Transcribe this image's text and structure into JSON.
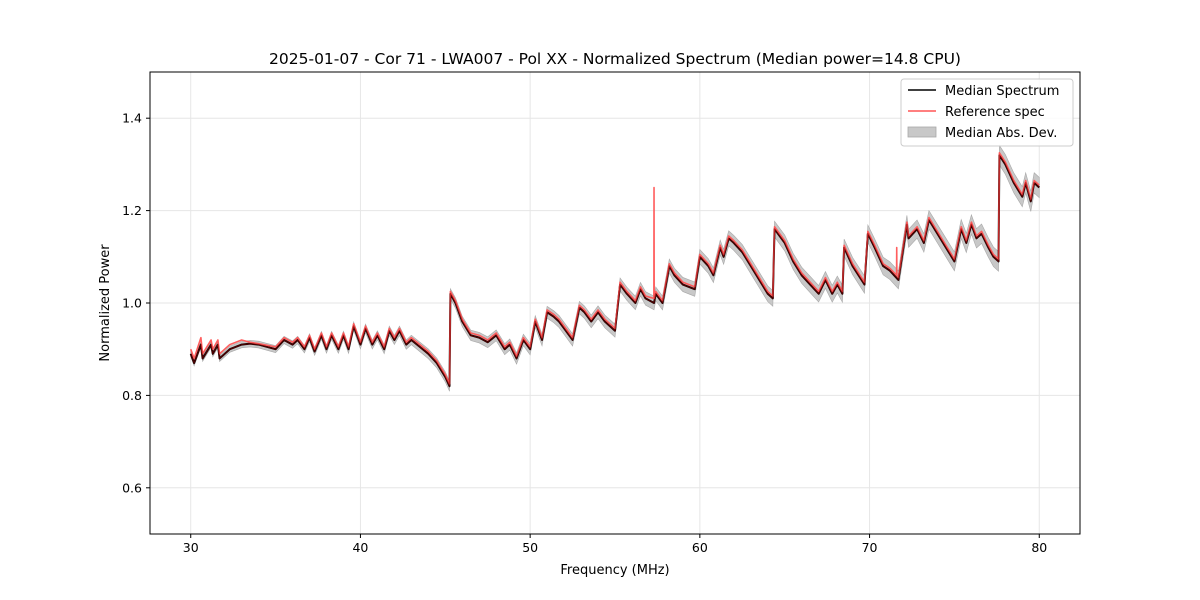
{
  "chart_data": {
    "type": "line",
    "title": "2025-01-07 - Cor 71 - LWA007 - Pol XX - Normalized Spectrum (Median power=14.8 CPU)",
    "xlabel": "Frequency (MHz)",
    "ylabel": "Normalized Power",
    "xlim": [
      27.6,
      82.4
    ],
    "ylim": [
      0.5,
      1.5
    ],
    "xticks": [
      30,
      40,
      50,
      60,
      70,
      80
    ],
    "yticks": [
      0.6,
      0.8,
      1.0,
      1.2,
      1.4
    ],
    "xtick_labels": [
      "30",
      "40",
      "50",
      "60",
      "70",
      "80"
    ],
    "ytick_labels": [
      "0.6",
      "0.8",
      "1.0",
      "1.2",
      "1.4"
    ],
    "grid": true,
    "legend_position": "top-right",
    "legend": [
      "Median Spectrum",
      "Reference spec",
      "Median Abs. Dev."
    ],
    "colors": {
      "median": "#000000",
      "reference": "#ff5555",
      "mad_fill": "#c8c8c8",
      "mad_edge": "#a8a8a8",
      "grid": "#e6e6e6",
      "axis": "#000000"
    },
    "series": [
      {
        "name": "Median Spectrum",
        "x": [
          30.0,
          30.2,
          30.6,
          30.7,
          31.2,
          31.3,
          31.6,
          31.7,
          32.3,
          33.0,
          33.5,
          34.0,
          35.0,
          35.5,
          36.0,
          36.3,
          36.7,
          37.0,
          37.3,
          37.7,
          38.0,
          38.3,
          38.7,
          39.0,
          39.3,
          39.6,
          40.0,
          40.3,
          40.7,
          41.0,
          41.4,
          41.7,
          42.0,
          42.3,
          42.7,
          43.0,
          43.5,
          44.0,
          44.5,
          45.0,
          45.25,
          45.3,
          45.6,
          46.0,
          46.5,
          47.0,
          47.5,
          48.0,
          48.5,
          48.8,
          49.2,
          49.6,
          50.0,
          50.3,
          50.7,
          51.0,
          51.4,
          51.7,
          52.1,
          52.5,
          52.9,
          53.2,
          53.6,
          54.0,
          54.4,
          55.0,
          55.3,
          55.7,
          56.2,
          56.5,
          56.8,
          57.3,
          57.4,
          57.8,
          58.2,
          58.5,
          59.0,
          59.7,
          60.0,
          60.5,
          60.8,
          61.2,
          61.4,
          61.7,
          62.0,
          62.5,
          63.0,
          63.5,
          64.0,
          64.3,
          64.4,
          65.0,
          65.5,
          66.0,
          66.5,
          67.0,
          67.4,
          67.8,
          68.1,
          68.4,
          68.5,
          69.0,
          69.7,
          69.9,
          70.3,
          70.8,
          71.2,
          71.7,
          72.2,
          72.3,
          72.8,
          73.2,
          73.5,
          74.0,
          74.5,
          75.0,
          75.4,
          75.7,
          76.0,
          76.3,
          76.6,
          77.0,
          77.3,
          77.6,
          77.65,
          78.0,
          78.5,
          79.0,
          79.2,
          79.5,
          79.7,
          80.0
        ],
        "values": [
          0.89,
          0.87,
          0.91,
          0.88,
          0.91,
          0.89,
          0.91,
          0.88,
          0.9,
          0.91,
          0.912,
          0.91,
          0.9,
          0.92,
          0.91,
          0.92,
          0.9,
          0.925,
          0.895,
          0.93,
          0.9,
          0.93,
          0.9,
          0.93,
          0.9,
          0.95,
          0.91,
          0.945,
          0.91,
          0.93,
          0.9,
          0.94,
          0.92,
          0.94,
          0.91,
          0.92,
          0.905,
          0.89,
          0.87,
          0.84,
          0.82,
          1.02,
          1.0,
          0.96,
          0.93,
          0.925,
          0.915,
          0.93,
          0.9,
          0.91,
          0.88,
          0.92,
          0.9,
          0.96,
          0.92,
          0.98,
          0.97,
          0.96,
          0.94,
          0.92,
          0.99,
          0.98,
          0.96,
          0.98,
          0.96,
          0.94,
          1.04,
          1.02,
          1.0,
          1.03,
          1.01,
          1.0,
          1.02,
          1.0,
          1.08,
          1.06,
          1.04,
          1.03,
          1.1,
          1.08,
          1.06,
          1.12,
          1.1,
          1.14,
          1.13,
          1.11,
          1.08,
          1.05,
          1.02,
          1.01,
          1.16,
          1.13,
          1.09,
          1.06,
          1.04,
          1.02,
          1.05,
          1.02,
          1.04,
          1.02,
          1.12,
          1.08,
          1.04,
          1.15,
          1.12,
          1.08,
          1.07,
          1.05,
          1.17,
          1.14,
          1.16,
          1.13,
          1.18,
          1.15,
          1.12,
          1.09,
          1.16,
          1.13,
          1.17,
          1.14,
          1.15,
          1.12,
          1.1,
          1.09,
          1.32,
          1.3,
          1.26,
          1.23,
          1.26,
          1.22,
          1.26,
          1.25
        ]
      },
      {
        "name": "Reference spec",
        "x": [
          30.0,
          30.2,
          30.6,
          30.7,
          31.2,
          31.3,
          31.6,
          31.7,
          32.3,
          33.0,
          33.5,
          34.0,
          35.0,
          35.5,
          36.0,
          36.3,
          36.7,
          37.0,
          37.3,
          37.7,
          38.0,
          38.3,
          38.7,
          39.0,
          39.3,
          39.6,
          40.0,
          40.3,
          40.7,
          41.0,
          41.4,
          41.7,
          42.0,
          42.3,
          42.7,
          43.0,
          43.5,
          44.0,
          44.5,
          45.0,
          45.25,
          45.3,
          45.6,
          46.0,
          46.5,
          47.0,
          47.5,
          48.0,
          48.5,
          48.8,
          49.2,
          49.6,
          50.0,
          50.3,
          50.7,
          51.0,
          51.4,
          51.7,
          52.1,
          52.5,
          52.9,
          53.2,
          53.6,
          54.0,
          54.4,
          55.0,
          55.3,
          55.7,
          56.2,
          56.5,
          56.8,
          57.29,
          57.3,
          57.31,
          57.4,
          57.8,
          58.2,
          58.5,
          59.0,
          59.7,
          60.0,
          60.5,
          60.8,
          61.2,
          61.4,
          61.7,
          62.0,
          62.5,
          63.0,
          63.5,
          64.0,
          64.3,
          64.4,
          65.0,
          65.5,
          66.0,
          66.5,
          67.0,
          67.4,
          67.8,
          68.1,
          68.4,
          68.5,
          69.0,
          69.7,
          69.9,
          70.3,
          70.8,
          71.2,
          71.59,
          71.6,
          71.61,
          71.7,
          72.2,
          72.3,
          72.8,
          73.2,
          73.5,
          74.0,
          74.5,
          75.0,
          75.4,
          75.7,
          76.0,
          76.3,
          76.6,
          77.0,
          77.3,
          77.6,
          77.65,
          78.0,
          78.5,
          79.0,
          79.2,
          79.5,
          79.7,
          80.0
        ],
        "values": [
          0.9,
          0.88,
          0.925,
          0.89,
          0.92,
          0.9,
          0.92,
          0.89,
          0.91,
          0.92,
          0.915,
          0.912,
          0.905,
          0.925,
          0.915,
          0.925,
          0.905,
          0.93,
          0.9,
          0.935,
          0.905,
          0.935,
          0.905,
          0.935,
          0.905,
          0.955,
          0.915,
          0.95,
          0.915,
          0.935,
          0.905,
          0.945,
          0.925,
          0.945,
          0.915,
          0.925,
          0.91,
          0.895,
          0.875,
          0.845,
          0.825,
          1.025,
          1.005,
          0.965,
          0.935,
          0.93,
          0.92,
          0.935,
          0.905,
          0.915,
          0.885,
          0.925,
          0.905,
          0.965,
          0.925,
          0.985,
          0.975,
          0.965,
          0.945,
          0.925,
          0.995,
          0.985,
          0.965,
          0.985,
          0.965,
          0.945,
          1.045,
          1.025,
          1.005,
          1.035,
          1.015,
          1.01,
          1.25,
          1.01,
          1.025,
          1.005,
          1.085,
          1.065,
          1.045,
          1.035,
          1.105,
          1.085,
          1.065,
          1.125,
          1.105,
          1.145,
          1.135,
          1.115,
          1.085,
          1.055,
          1.025,
          1.015,
          1.165,
          1.135,
          1.095,
          1.065,
          1.045,
          1.025,
          1.055,
          1.025,
          1.045,
          1.025,
          1.125,
          1.085,
          1.045,
          1.155,
          1.125,
          1.085,
          1.075,
          1.06,
          1.12,
          1.06,
          1.055,
          1.175,
          1.145,
          1.165,
          1.135,
          1.185,
          1.155,
          1.125,
          1.095,
          1.165,
          1.135,
          1.175,
          1.145,
          1.155,
          1.125,
          1.105,
          1.095,
          1.325,
          1.305,
          1.265,
          1.235,
          1.265,
          1.225,
          1.265,
          1.255
        ]
      },
      {
        "name": "Median Abs. Dev.",
        "type": "band",
        "x_from": "Median Spectrum",
        "half_width_start": 0.006,
        "half_width_end": 0.022
      }
    ]
  }
}
